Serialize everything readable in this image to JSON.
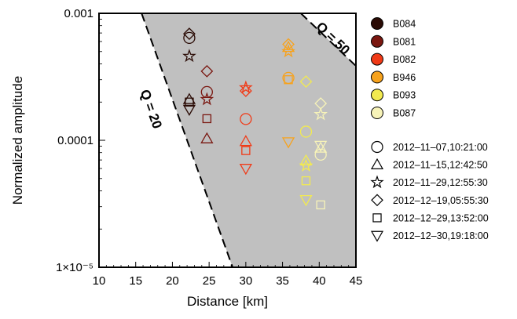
{
  "chart_data": {
    "type": "scatter",
    "title": "",
    "xlabel": "Distance [km]",
    "ylabel": "Normalized amplitude",
    "xlim": [
      10,
      45
    ],
    "ylim": [
      1e-05,
      0.001
    ],
    "y_scale": "log",
    "x_ticks": [
      "10",
      "15",
      "20",
      "25",
      "30",
      "35",
      "40",
      "45"
    ],
    "y_ticks": [
      {
        "value": 0.001,
        "label": "0.001"
      },
      {
        "value": 0.0001,
        "label": "0.0001"
      },
      {
        "value": 1e-05,
        "label": "1×10⁻⁵"
      }
    ],
    "shaded_region": {
      "color": "#c0c0c0",
      "description": "between Q = 20 and Q = 50 attenuation curves",
      "lower_boundary": {
        "label": "Q = 20",
        "from": [
          15.8,
          0.001
        ],
        "to": [
          28.2,
          1e-05
        ]
      },
      "upper_boundary": {
        "label": "Q = 50",
        "from": [
          37.5,
          0.001
        ],
        "to": [
          45.0,
          0.000385
        ]
      }
    },
    "stations": [
      {
        "name": "B084",
        "color": "#2a0b05",
        "distance": 22.3
      },
      {
        "name": "B081",
        "color": "#7a1710",
        "distance": 24.7
      },
      {
        "name": "B082",
        "color": "#f03a17",
        "distance": 30.0
      },
      {
        "name": "B946",
        "color": "#f7a21c",
        "distance": 35.8
      },
      {
        "name": "B093",
        "color": "#f2ea50",
        "distance": 38.2
      },
      {
        "name": "B087",
        "color": "#f7f3b8",
        "distance": 40.2
      }
    ],
    "events": [
      {
        "label": "2012–11–07,10:21:00",
        "marker": "circle"
      },
      {
        "label": "2012–11–15,12:42:50",
        "marker": "triangle"
      },
      {
        "label": "2012–11–29,12:55:30",
        "marker": "star"
      },
      {
        "label": "2012–12–19,05:55:30",
        "marker": "diamond"
      },
      {
        "label": "2012–12–29,13:52:00",
        "marker": "square"
      },
      {
        "label": "2012–12–30,19:18:00",
        "marker": "triangle-down"
      }
    ],
    "points": [
      {
        "station": "B084",
        "event": "circle",
        "x": 22.3,
        "y": 0.00064
      },
      {
        "station": "B084",
        "event": "triangle",
        "x": 22.3,
        "y": 0.00021
      },
      {
        "station": "B084",
        "event": "star",
        "x": 22.3,
        "y": 0.00046
      },
      {
        "station": "B084",
        "event": "diamond",
        "x": 22.3,
        "y": 0.00069
      },
      {
        "station": "B084",
        "event": "square",
        "x": 22.3,
        "y": 0.0002
      },
      {
        "station": "B084",
        "event": "triangle-down",
        "x": 22.3,
        "y": 0.000175
      },
      {
        "station": "B081",
        "event": "circle",
        "x": 24.7,
        "y": 0.00024
      },
      {
        "station": "B081",
        "event": "triangle",
        "x": 24.7,
        "y": 0.000103
      },
      {
        "station": "B081",
        "event": "star",
        "x": 24.7,
        "y": 0.00021
      },
      {
        "station": "B081",
        "event": "diamond",
        "x": 24.7,
        "y": 0.00035
      },
      {
        "station": "B081",
        "event": "square",
        "x": 24.7,
        "y": 0.000148
      },
      {
        "station": "B082",
        "event": "circle",
        "x": 30.0,
        "y": 0.000147
      },
      {
        "station": "B082",
        "event": "triangle",
        "x": 30.0,
        "y": 9.8e-05
      },
      {
        "station": "B082",
        "event": "star",
        "x": 30.0,
        "y": 0.00026
      },
      {
        "station": "B082",
        "event": "diamond",
        "x": 30.0,
        "y": 0.000245
      },
      {
        "station": "B082",
        "event": "square",
        "x": 30.0,
        "y": 8.3e-05
      },
      {
        "station": "B082",
        "event": "triangle-down",
        "x": 30.0,
        "y": 6e-05
      },
      {
        "station": "B946",
        "event": "circle",
        "x": 35.8,
        "y": 0.00031
      },
      {
        "station": "B946",
        "event": "triangle",
        "x": 35.8,
        "y": 0.00054
      },
      {
        "station": "B946",
        "event": "star",
        "x": 35.8,
        "y": 0.0005
      },
      {
        "station": "B946",
        "event": "diamond",
        "x": 35.8,
        "y": 0.00057
      },
      {
        "station": "B946",
        "event": "square",
        "x": 35.8,
        "y": 0.0003
      },
      {
        "station": "B946",
        "event": "triangle-down",
        "x": 35.8,
        "y": 9.7e-05
      },
      {
        "station": "B093",
        "event": "circle",
        "x": 38.2,
        "y": 0.000117
      },
      {
        "station": "B093",
        "event": "triangle",
        "x": 38.2,
        "y": 6.9e-05
      },
      {
        "station": "B093",
        "event": "star",
        "x": 38.2,
        "y": 6.3e-05
      },
      {
        "station": "B093",
        "event": "diamond",
        "x": 38.2,
        "y": 0.00029
      },
      {
        "station": "B093",
        "event": "square",
        "x": 38.2,
        "y": 4.8e-05
      },
      {
        "station": "B093",
        "event": "triangle-down",
        "x": 38.2,
        "y": 3.4e-05
      },
      {
        "station": "B087",
        "event": "circle",
        "x": 40.2,
        "y": 7.7e-05
      },
      {
        "station": "B087",
        "event": "triangle",
        "x": 40.2,
        "y": 8.7e-05
      },
      {
        "station": "B087",
        "event": "star",
        "x": 40.2,
        "y": 0.00016
      },
      {
        "station": "B087",
        "event": "diamond",
        "x": 40.2,
        "y": 0.000195
      },
      {
        "station": "B087",
        "event": "square",
        "x": 40.2,
        "y": 3.1e-05
      },
      {
        "station": "B087",
        "event": "triangle-down",
        "x": 40.2,
        "y": 9.1e-05
      }
    ]
  }
}
